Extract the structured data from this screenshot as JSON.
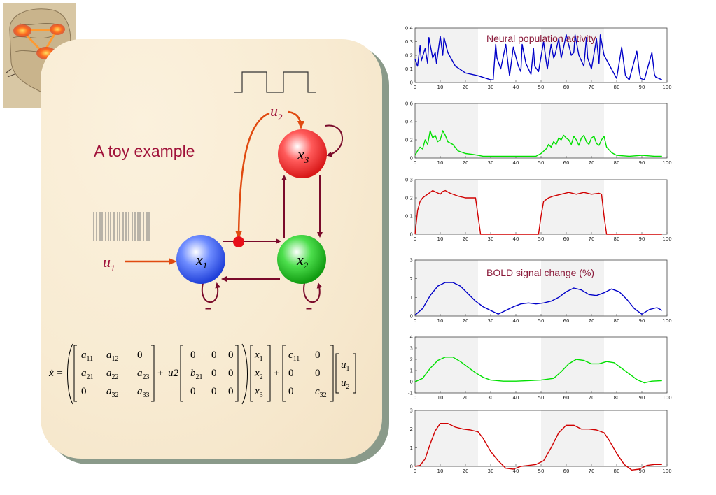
{
  "colors": {
    "accent": "#a0123a",
    "input_arrow": "#e04a10",
    "connection": "#7a0a2a",
    "node_x1": "#3a5cf0",
    "node_x2": "#20b020",
    "node_x3": "#e83030",
    "series_blue": "#0000c8",
    "series_green": "#00e000",
    "series_red": "#d00000",
    "shade": "#f2f2f2"
  },
  "slide": {
    "title": "A toy example",
    "inputs": {
      "u1": "u",
      "u1_sub": "1",
      "u2": "u",
      "u2_sub": "2"
    },
    "nodes": [
      {
        "name": "x",
        "sub": "1"
      },
      {
        "name": "x",
        "sub": "2"
      },
      {
        "name": "x",
        "sub": "3"
      }
    ],
    "inhibit_mark_1": "–",
    "inhibit_mark_2": "–"
  },
  "equation": {
    "lhs": "ẋ = ",
    "A": [
      [
        "a11",
        "a12",
        "0"
      ],
      [
        "a21",
        "a22",
        "a23"
      ],
      [
        "0",
        "a32",
        "a33"
      ]
    ],
    "plus1": "+",
    "u2": "u2",
    "B": [
      [
        "0",
        "0",
        "0"
      ],
      [
        "b21",
        "0",
        "0"
      ],
      [
        "0",
        "0",
        "0"
      ]
    ],
    "x": [
      "x1",
      "x2",
      "x3"
    ],
    "plus2": "+",
    "C": [
      [
        "c11",
        "0"
      ],
      [
        "0",
        "0"
      ],
      [
        "0",
        "c32"
      ]
    ],
    "u": [
      "u1",
      "u2"
    ]
  },
  "chart_data": [
    {
      "type": "line",
      "title": "Neural population activity",
      "series": [
        {
          "color": "blue"
        }
      ],
      "xlim": [
        0,
        100
      ],
      "ylim": [
        0,
        0.4
      ],
      "yticks": [
        "0",
        "0.1",
        "0.2",
        "0.3",
        "0.4"
      ],
      "xticks": [
        "0",
        "10",
        "20",
        "30",
        "40",
        "50",
        "60",
        "70",
        "80",
        "90",
        "100"
      ],
      "shaded": [
        [
          0,
          25
        ],
        [
          50,
          75
        ]
      ],
      "x": [
        0,
        1,
        2,
        2.5,
        4,
        5,
        5.5,
        7,
        8,
        8.5,
        10,
        11,
        11.5,
        13,
        16,
        20,
        25,
        30,
        31,
        32,
        32.5,
        34,
        36,
        37,
        37.5,
        39,
        41,
        42,
        42.5,
        44,
        46,
        47,
        47.5,
        49,
        51,
        52,
        52.5,
        54,
        55,
        55.5,
        57,
        58,
        58.5,
        60,
        62,
        63,
        63.5,
        65,
        67,
        68,
        68.5,
        70,
        72,
        73,
        73.5,
        75,
        80,
        82,
        83,
        83.5,
        85,
        88,
        89,
        89.5,
        91,
        94,
        95,
        95.5,
        98
      ],
      "y": [
        0.17,
        0.12,
        0.27,
        0.16,
        0.25,
        0.14,
        0.33,
        0.18,
        0.22,
        0.14,
        0.34,
        0.2,
        0.33,
        0.22,
        0.12,
        0.07,
        0.05,
        0.02,
        0.02,
        0.28,
        0.18,
        0.1,
        0.28,
        0.12,
        0.05,
        0.26,
        0.12,
        0.08,
        0.28,
        0.14,
        0.06,
        0.25,
        0.12,
        0.08,
        0.3,
        0.16,
        0.1,
        0.28,
        0.18,
        0.2,
        0.32,
        0.18,
        0.22,
        0.35,
        0.2,
        0.22,
        0.35,
        0.2,
        0.12,
        0.33,
        0.18,
        0.1,
        0.32,
        0.14,
        0.35,
        0.2,
        0.03,
        0.26,
        0.12,
        0.05,
        0.02,
        0.23,
        0.08,
        0.03,
        0.02,
        0.22,
        0.06,
        0.04,
        0.02
      ]
    },
    {
      "type": "line",
      "series": [
        {
          "color": "green"
        }
      ],
      "xlim": [
        0,
        100
      ],
      "ylim": [
        0,
        0.6
      ],
      "yticks": [
        "0",
        "0.2",
        "0.4",
        "0.6"
      ],
      "xticks": [
        "0",
        "10",
        "20",
        "30",
        "40",
        "50",
        "60",
        "70",
        "80",
        "90",
        "100"
      ],
      "shaded": [
        [
          0,
          25
        ],
        [
          50,
          75
        ]
      ],
      "x": [
        0,
        1,
        2,
        3,
        4,
        5,
        6,
        7,
        8,
        9,
        10,
        11,
        12,
        13,
        15,
        17,
        20,
        23,
        25,
        27,
        30,
        35,
        40,
        45,
        48,
        50,
        52,
        53,
        54,
        55,
        56,
        57,
        58,
        59,
        60,
        61,
        62,
        63,
        64,
        65,
        66,
        67,
        68,
        69,
        70,
        71,
        72,
        73,
        74,
        75,
        76,
        78,
        80,
        85,
        90,
        95,
        98
      ],
      "y": [
        0.03,
        0.08,
        0.12,
        0.1,
        0.2,
        0.15,
        0.3,
        0.22,
        0.25,
        0.18,
        0.2,
        0.3,
        0.25,
        0.18,
        0.15,
        0.08,
        0.05,
        0.04,
        0.03,
        0.02,
        0.02,
        0.02,
        0.02,
        0.02,
        0.02,
        0.05,
        0.1,
        0.15,
        0.12,
        0.18,
        0.15,
        0.22,
        0.2,
        0.25,
        0.22,
        0.2,
        0.15,
        0.24,
        0.2,
        0.14,
        0.22,
        0.25,
        0.18,
        0.15,
        0.22,
        0.24,
        0.16,
        0.14,
        0.2,
        0.24,
        0.12,
        0.06,
        0.03,
        0.02,
        0.03,
        0.02,
        0.02
      ]
    },
    {
      "type": "line",
      "series": [
        {
          "color": "red"
        }
      ],
      "xlim": [
        0,
        100
      ],
      "ylim": [
        0,
        0.3
      ],
      "yticks": [
        "0",
        "0.1",
        "0.2",
        "0.3"
      ],
      "xticks": [
        "0",
        "10",
        "20",
        "30",
        "40",
        "50",
        "60",
        "70",
        "80",
        "90",
        "100"
      ],
      "shaded": [
        [
          0,
          25
        ],
        [
          50,
          75
        ]
      ],
      "x": [
        0,
        1,
        2,
        3,
        5,
        7,
        10,
        11,
        12,
        14,
        17,
        20,
        24,
        25,
        26,
        30,
        40,
        49,
        50,
        51,
        53,
        55,
        58,
        61,
        64,
        67,
        70,
        73,
        74,
        75,
        76,
        80,
        90,
        98
      ],
      "y": [
        0,
        0.13,
        0.18,
        0.2,
        0.22,
        0.24,
        0.22,
        0.235,
        0.24,
        0.225,
        0.21,
        0.2,
        0.2,
        0.1,
        0,
        0,
        0,
        0,
        0.1,
        0.18,
        0.2,
        0.21,
        0.22,
        0.23,
        0.22,
        0.23,
        0.22,
        0.225,
        0.22,
        0.1,
        0,
        0,
        0,
        0
      ]
    },
    {
      "type": "line",
      "title": "BOLD signal change (%)",
      "series": [
        {
          "color": "blue"
        }
      ],
      "xlim": [
        0,
        100
      ],
      "ylim": [
        0,
        3
      ],
      "yticks": [
        "0",
        "1",
        "2",
        "3"
      ],
      "xticks": [
        "0",
        "10",
        "20",
        "30",
        "40",
        "50",
        "60",
        "70",
        "80",
        "90",
        "100"
      ],
      "shaded": [
        [
          0,
          25
        ],
        [
          50,
          75
        ]
      ],
      "x": [
        0,
        3,
        6,
        9,
        12,
        15,
        18,
        21,
        24,
        27,
        30,
        33,
        36,
        39,
        42,
        45,
        48,
        51,
        54,
        57,
        60,
        63,
        66,
        69,
        72,
        75,
        78,
        81,
        84,
        87,
        90,
        93,
        96,
        98
      ],
      "y": [
        0.05,
        0.4,
        1.1,
        1.6,
        1.8,
        1.8,
        1.6,
        1.2,
        0.8,
        0.5,
        0.3,
        0.1,
        0.3,
        0.5,
        0.65,
        0.7,
        0.65,
        0.7,
        0.8,
        1.0,
        1.3,
        1.5,
        1.4,
        1.15,
        1.1,
        1.25,
        1.45,
        1.3,
        0.9,
        0.4,
        0.1,
        0.35,
        0.45,
        0.3
      ]
    },
    {
      "type": "line",
      "series": [
        {
          "color": "green"
        }
      ],
      "xlim": [
        0,
        100
      ],
      "ylim": [
        -1,
        4
      ],
      "yticks": [
        "-1",
        "0",
        "1",
        "2",
        "3",
        "4"
      ],
      "xticks": [
        "0",
        "10",
        "20",
        "30",
        "40",
        "50",
        "60",
        "70",
        "80",
        "90",
        "100"
      ],
      "shaded": [
        [
          0,
          25
        ],
        [
          50,
          75
        ]
      ],
      "x": [
        0,
        3,
        6,
        9,
        12,
        15,
        18,
        21,
        24,
        27,
        30,
        35,
        40,
        45,
        50,
        55,
        58,
        61,
        64,
        67,
        70,
        73,
        76,
        79,
        82,
        85,
        88,
        91,
        94,
        98
      ],
      "y": [
        0,
        0.3,
        1.2,
        1.9,
        2.2,
        2.2,
        1.8,
        1.3,
        0.8,
        0.4,
        0.15,
        0.05,
        0.05,
        0.1,
        0.15,
        0.3,
        0.9,
        1.6,
        2.0,
        1.9,
        1.6,
        1.6,
        1.8,
        1.7,
        1.2,
        0.7,
        0.2,
        -0.1,
        0.05,
        0.1
      ]
    },
    {
      "type": "line",
      "series": [
        {
          "color": "red"
        }
      ],
      "xlim": [
        0,
        100
      ],
      "ylim": [
        0,
        3
      ],
      "yticks": [
        "0",
        "1",
        "2",
        "3"
      ],
      "xticks": [
        "0",
        "10",
        "20",
        "30",
        "40",
        "50",
        "60",
        "70",
        "80",
        "90",
        "100"
      ],
      "shaded": [
        [
          0,
          25
        ],
        [
          50,
          75
        ]
      ],
      "x": [
        0,
        2,
        4,
        6,
        8,
        10,
        13,
        16,
        19,
        22,
        25,
        27,
        30,
        33,
        36,
        39,
        42,
        45,
        48,
        51,
        54,
        57,
        60,
        63,
        66,
        69,
        72,
        75,
        77,
        80,
        83,
        86,
        89,
        92,
        95,
        98
      ],
      "y": [
        0,
        0.05,
        0.4,
        1.2,
        1.9,
        2.3,
        2.3,
        2.1,
        2.0,
        1.95,
        1.85,
        1.5,
        0.8,
        0.3,
        -0.1,
        -0.15,
        0.0,
        0.05,
        0.1,
        0.3,
        1.0,
        1.8,
        2.2,
        2.2,
        2.0,
        2.0,
        1.95,
        1.8,
        1.4,
        0.7,
        0.1,
        -0.2,
        -0.15,
        0.05,
        0.1,
        0.1
      ]
    }
  ]
}
